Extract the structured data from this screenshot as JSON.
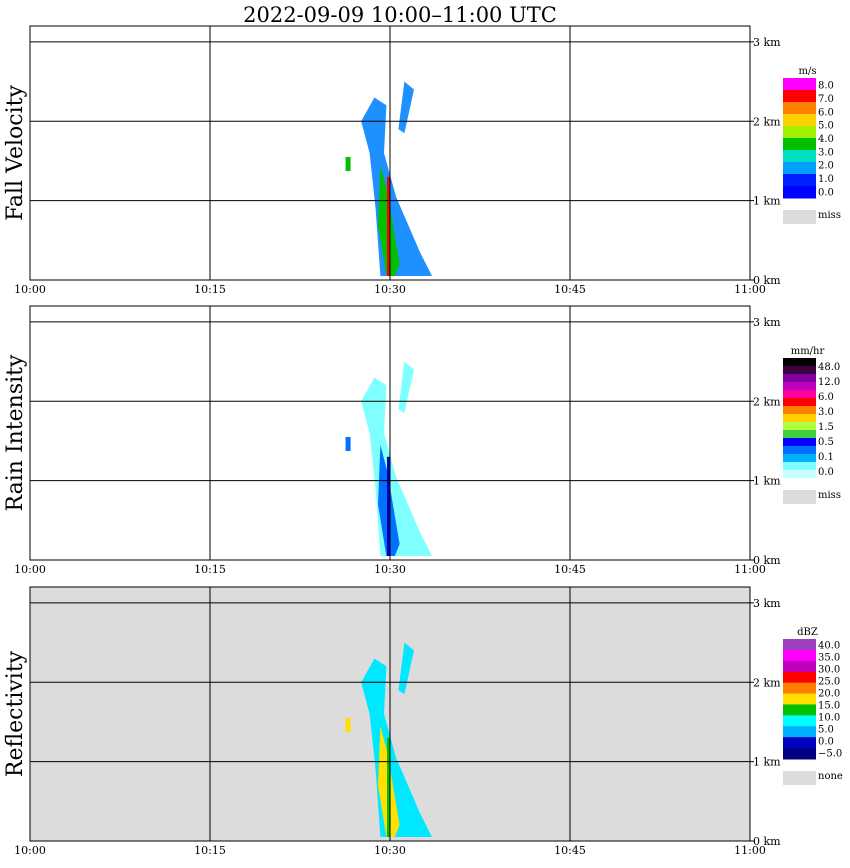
{
  "title": "2022-09-09   10:00–11:00 UTC",
  "x_ticks": [
    "10:00",
    "10:15",
    "10:30",
    "10:45",
    "11:00"
  ],
  "y_ticks": [
    "0 km",
    "1 km",
    "2 km",
    "3 km"
  ],
  "chart_data": [
    {
      "type": "heatmap",
      "title": "Fall Velocity",
      "ylabel": "Fall Velocity",
      "x_range": [
        "10:00",
        "11:00"
      ],
      "y_range_km": [
        0,
        3.2
      ],
      "grid": true,
      "legend_placement": "right",
      "background": "#ffffff",
      "colorbar": {
        "unit": "m/s",
        "labels": [
          "8.0",
          "7.0",
          "6.0",
          "5.0",
          "4.0",
          "3.0",
          "2.0",
          "1.0",
          "0.0"
        ],
        "colors": [
          "#ff00ff",
          "#ff0000",
          "#ff8000",
          "#ffd000",
          "#a0f000",
          "#00c000",
          "#00e0c0",
          "#00a0ff",
          "#0020ff",
          "#0000ff"
        ],
        "miss_label": "miss",
        "miss_color": "#dcdcdc"
      },
      "echo_color": "#1e90ff",
      "core_color": "#00c000",
      "hot_color": "#ff0000"
    },
    {
      "type": "heatmap",
      "title": "Rain Intensity",
      "ylabel": "Rain Intensity",
      "x_range": [
        "10:00",
        "11:00"
      ],
      "y_range_km": [
        0,
        3.2
      ],
      "grid": true,
      "legend_placement": "right",
      "background": "#ffffff",
      "colorbar": {
        "unit": "mm/hr",
        "labels": [
          "48.0",
          "12.0",
          "6.0",
          "3.0",
          "1.5",
          "0.5",
          "0.1",
          "0.0"
        ],
        "colors": [
          "#000000",
          "#400040",
          "#8000a0",
          "#c000c0",
          "#ff00a0",
          "#ff0000",
          "#ff8000",
          "#ffd000",
          "#b0ff40",
          "#40d040",
          "#0000ff",
          "#0070ff",
          "#00b0ff",
          "#80ffff",
          "#c8ffff"
        ],
        "miss_label": "miss",
        "miss_color": "#dcdcdc"
      },
      "echo_color": "#80ffff",
      "core_color": "#0070ff",
      "hot_color": "#0000c0"
    },
    {
      "type": "heatmap",
      "title": "Reflectivity",
      "ylabel": "Reflectivity",
      "x_range": [
        "10:00",
        "11:00"
      ],
      "y_range_km": [
        0,
        3.2
      ],
      "grid": true,
      "legend_placement": "right",
      "background": "#dcdcdc",
      "colorbar": {
        "unit": "dBZ",
        "labels": [
          "40.0",
          "35.0",
          "30.0",
          "25.0",
          "20.0",
          "15.0",
          "10.0",
          "5.0",
          "0.0",
          "−5.0"
        ],
        "colors": [
          "#a040c0",
          "#ff00ff",
          "#c000c0",
          "#ff0000",
          "#ff8000",
          "#ffe000",
          "#00c000",
          "#00ffff",
          "#00b0ff",
          "#0000c0",
          "#000080"
        ],
        "miss_label": "none",
        "miss_color": "#dcdcdc"
      },
      "echo_color": "#00e8ff",
      "core_color": "#ffe000",
      "hot_color": "#00c000"
    }
  ]
}
